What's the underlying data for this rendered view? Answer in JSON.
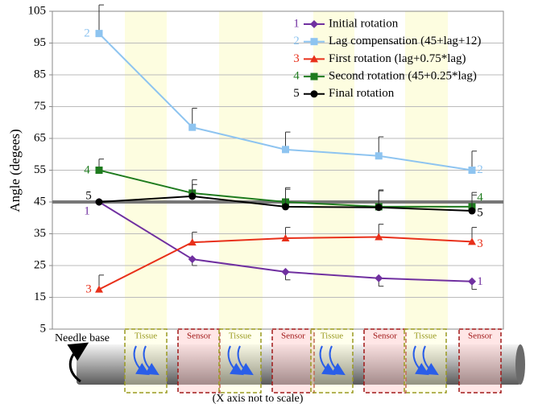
{
  "chart_data": {
    "type": "line",
    "y_label": "Angle (degees)",
    "categories": [
      null,
      null,
      null,
      null,
      null
    ],
    "ylim": [
      5,
      105
    ],
    "yticks": [
      5,
      15,
      25,
      35,
      45,
      55,
      65,
      75,
      85,
      95,
      105
    ],
    "grid": true,
    "reference_line": 45,
    "series": [
      {
        "name": "Initial rotation",
        "label": "1",
        "color": "#7030a0",
        "marker": "diamond",
        "error_direction": "down",
        "values": [
          45,
          27,
          23,
          21,
          20
        ],
        "errors": [
          0,
          2,
          2.5,
          2.5,
          2.5
        ]
      },
      {
        "name": "Lag compensation (45+lag+12)",
        "label": "2",
        "color": "#8ec4f0",
        "marker": "square",
        "error_direction": "up",
        "values": [
          98,
          68.5,
          61.5,
          59.5,
          55
        ],
        "errors": [
          9,
          6,
          5.5,
          6,
          6
        ]
      },
      {
        "name": "First rotation (lag+0.75*lag)",
        "label": "3",
        "color": "#e8301a",
        "marker": "triangle",
        "error_direction": "up",
        "values": [
          17.5,
          32.3,
          33.6,
          34,
          32.5
        ],
        "errors": [
          4.5,
          3.2,
          3.4,
          4,
          4.5
        ]
      },
      {
        "name": "Second rotation (45+0.25*lag)",
        "label": "4",
        "color": "#1e7b1e",
        "marker": "square",
        "error_direction": "up",
        "values": [
          55,
          47.8,
          45,
          43.5,
          43.5
        ],
        "errors": [
          3.5,
          4.2,
          4.5,
          5,
          4.5
        ]
      },
      {
        "name": "Final rotation",
        "label": "5",
        "color": "#000000",
        "marker": "circle",
        "error_direction": "up",
        "values": [
          45,
          46.8,
          43.5,
          43.3,
          42.2
        ],
        "errors": [
          0,
          3.7,
          5.5,
          5.5,
          5
        ]
      }
    ],
    "regions": [
      "Tissue",
      "Sensor",
      "Tissue",
      "Sensor",
      "Tissue",
      "Sensor",
      "Tissue",
      "Sensor"
    ],
    "start_label": "Needle base",
    "footnote": "(X axis not to scale)"
  }
}
